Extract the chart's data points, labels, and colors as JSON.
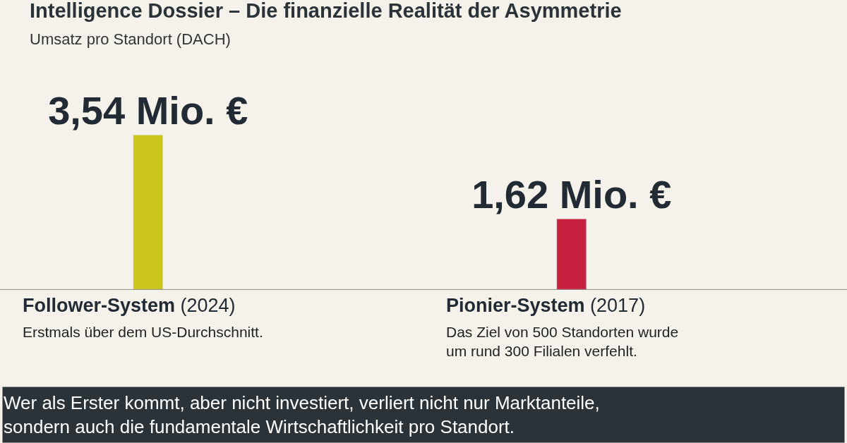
{
  "chart_data": {
    "type": "bar",
    "title": "Intelligence Dossier – Die finanzielle Realität der Asymmetrie",
    "subtitle": "Umsatz pro Standort (DACH)",
    "categories": [
      "Follower-System (2024)",
      "Pionier-System (2017)"
    ],
    "values": [
      3.54,
      1.62
    ],
    "colors": [
      "#c9c51c",
      "#c8203f"
    ],
    "value_labels": [
      "3,54 Mio. €",
      "1,62 Mio. €"
    ],
    "annotations": [
      "Erstmals über dem US-Durchschnitt.",
      "Das Ziel von 500 Standorten wurde um rund 300 Filialen verfehlt.",
      "Wer als Erster kommt, aber nicht investiert, verliert nicht nur Marktanteile, sondern auch die fundamentale Wirtschaftlichkeit pro Standort."
    ]
  }
}
